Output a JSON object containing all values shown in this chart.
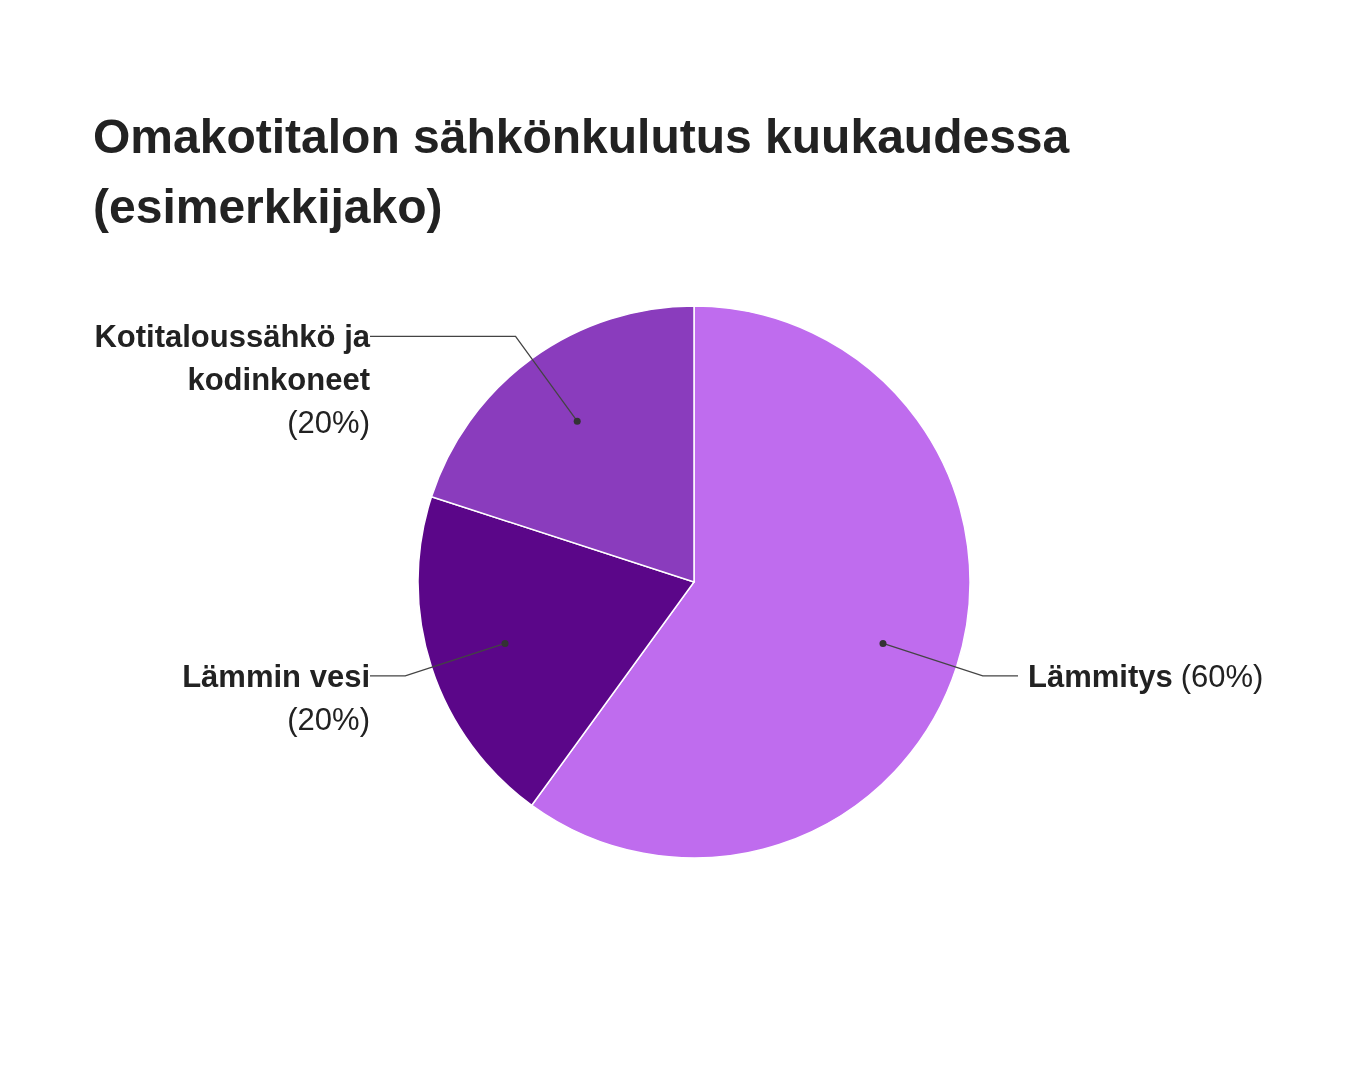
{
  "chart_data": {
    "type": "pie",
    "title": "Omakotitalon sähkönkulutus kuukaudessa (esimerkkijako)",
    "categories": [
      "Lämmitys",
      "Lämmin vesi",
      "Kotitaloussähkö ja kodinkoneet"
    ],
    "values": [
      60,
      20,
      20
    ],
    "colors": [
      "#bf6cee",
      "#5b0689",
      "#8a3cbd"
    ],
    "value_labels": [
      "(60%)",
      "(20%)",
      "(20%)"
    ]
  }
}
